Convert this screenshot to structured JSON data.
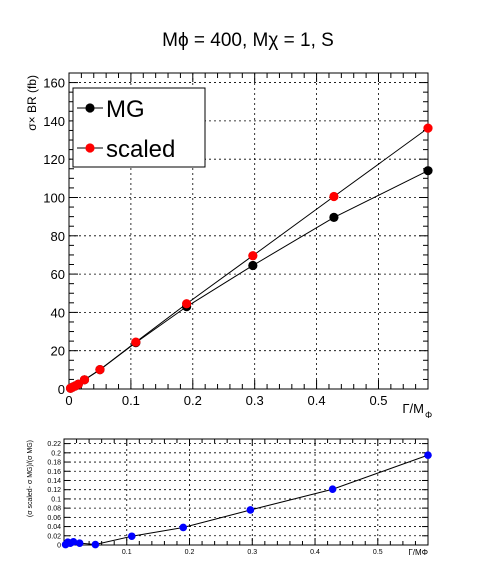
{
  "chart_data": [
    {
      "type": "line",
      "title": "Mϕ = 400, Mχ = 1, S",
      "ylabel": "σ× BR (fb)",
      "xlabel_main": "Γ/M",
      "xlabel_sub": "Φ",
      "xlim": [
        0,
        0.58
      ],
      "ylim": [
        0,
        165
      ],
      "x_ticks": [
        0,
        0.1,
        0.2,
        0.3,
        0.4,
        0.5
      ],
      "x_tick_labels": [
        "0",
        "0.1",
        "0.2",
        "0.3",
        "0.4",
        "0.5"
      ],
      "y_ticks": [
        0,
        20,
        40,
        60,
        80,
        100,
        120,
        140,
        160
      ],
      "y_tick_labels": [
        "0",
        "20",
        "40",
        "60",
        "80",
        "100",
        "120",
        "140",
        "160"
      ],
      "grid": true,
      "legend_position": "top-left",
      "series": [
        {
          "name": "MG",
          "color": "#000000",
          "x": [
            0.0025,
            0.006,
            0.01,
            0.015,
            0.025,
            0.05,
            0.108,
            0.19,
            0.297,
            0.428,
            0.58
          ],
          "y": [
            0.4,
            1.0,
            1.6,
            2.5,
            4.8,
            10.1,
            24.2,
            43.0,
            64.5,
            89.6,
            114.0
          ]
        },
        {
          "name": "scaled",
          "color": "#ff0000",
          "x": [
            0.0025,
            0.006,
            0.01,
            0.015,
            0.025,
            0.05,
            0.108,
            0.19,
            0.297,
            0.428,
            0.58
          ],
          "y": [
            0.4,
            1.0,
            1.6,
            2.5,
            4.8,
            10.1,
            24.5,
            44.5,
            69.6,
            100.5,
            136.2
          ]
        }
      ]
    },
    {
      "type": "line",
      "ylabel": "(σ scaled- σ MG)/(σ MG)",
      "xlabel": "Γ/MΦ",
      "xlim": [
        0,
        0.58
      ],
      "ylim": [
        0,
        0.23
      ],
      "x_ticks": [
        0.1,
        0.2,
        0.3,
        0.4,
        0.5
      ],
      "x_tick_labels": [
        "0.1",
        "0.2",
        "0.3",
        "0.4",
        "0.5"
      ],
      "y_ticks": [
        0,
        0.02,
        0.04,
        0.06,
        0.08,
        0.1,
        0.12,
        0.14,
        0.16,
        0.18,
        0.2,
        0.22
      ],
      "y_tick_labels": [
        "0",
        "0.02",
        "0.04",
        "0.06",
        "0.08",
        "0.1",
        "0.12",
        "0.14",
        "0.16",
        "0.18",
        "0.2",
        "0.22"
      ],
      "grid": true,
      "series": [
        {
          "color": "#0000ff",
          "x": [
            0.0025,
            0.006,
            0.01,
            0.015,
            0.025,
            0.05,
            0.108,
            0.19,
            0.297,
            0.428,
            0.58
          ],
          "y": [
            0.001,
            0.006,
            0.004,
            0.007,
            0.004,
            0.001,
            0.019,
            0.038,
            0.076,
            0.121,
            0.195
          ]
        }
      ]
    }
  ]
}
